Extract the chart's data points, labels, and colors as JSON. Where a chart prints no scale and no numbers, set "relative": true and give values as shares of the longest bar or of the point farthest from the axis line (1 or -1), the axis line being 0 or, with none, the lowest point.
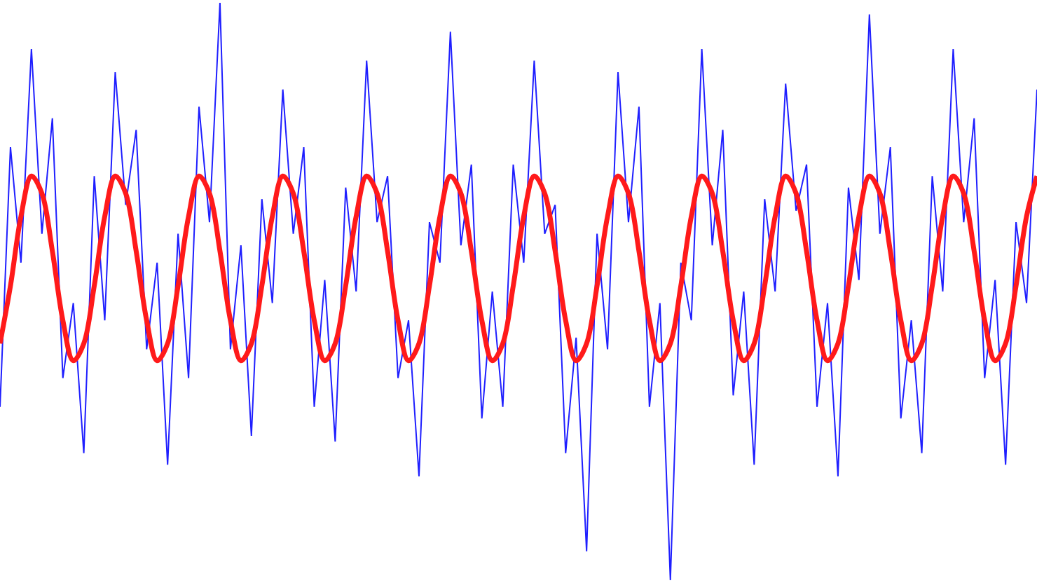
{
  "chart_data": {
    "type": "line",
    "relative": true,
    "line_style": "solid",
    "marker": "none",
    "categories": [
      null,
      null,
      null,
      null,
      null,
      null,
      null,
      null,
      null,
      null,
      null,
      null,
      null,
      null,
      null,
      null,
      null,
      null,
      null,
      null,
      null,
      null,
      null,
      null,
      null,
      null,
      null,
      null,
      null,
      null,
      null,
      null,
      null,
      null,
      null,
      null,
      null,
      null,
      null,
      null,
      null,
      null,
      null,
      null,
      null,
      null,
      null,
      null,
      null,
      null,
      null,
      null,
      null,
      null,
      null,
      null,
      null,
      null,
      null,
      null,
      null,
      null,
      null,
      null,
      null,
      null,
      null,
      null,
      null,
      null,
      null,
      null,
      null,
      null,
      null,
      null,
      null,
      null,
      null,
      null,
      null,
      null,
      null,
      null,
      null,
      null,
      null,
      null,
      null,
      null,
      null,
      null,
      null,
      null,
      null,
      null,
      null,
      null,
      null,
      null
    ],
    "series": [
      {
        "color": "#1f1fff",
        "values": [
          0.3,
          0.75,
          0.55,
          0.92,
          0.6,
          0.8,
          0.35,
          0.48,
          0.22,
          0.7,
          0.45,
          0.88,
          0.65,
          0.78,
          0.4,
          0.55,
          0.2,
          0.6,
          0.35,
          0.82,
          0.62,
          1.0,
          0.4,
          0.58,
          0.25,
          0.66,
          0.48,
          0.85,
          0.6,
          0.75,
          0.3,
          0.52,
          0.24,
          0.68,
          0.5,
          0.9,
          0.62,
          0.7,
          0.35,
          0.45,
          0.18,
          0.62,
          0.55,
          0.95,
          0.58,
          0.72,
          0.28,
          0.5,
          0.3,
          0.72,
          0.55,
          0.9,
          0.6,
          0.65,
          0.22,
          0.42,
          0.05,
          0.6,
          0.4,
          0.88,
          0.62,
          0.82,
          0.3,
          0.48,
          0.0,
          0.55,
          0.45,
          0.92,
          0.58,
          0.78,
          0.32,
          0.5,
          0.2,
          0.66,
          0.5,
          0.86,
          0.64,
          0.72,
          0.3,
          0.48,
          0.18,
          0.68,
          0.52,
          0.98,
          0.6,
          0.75,
          0.28,
          0.45,
          0.22,
          0.7,
          0.5,
          0.92,
          0.62,
          0.8,
          0.35,
          0.52,
          0.2,
          0.62,
          0.48,
          0.85
        ]
      },
      {
        "color": "#ff1a1a",
        "values": [
          0.41,
          0.51,
          0.63,
          0.7,
          0.67,
          0.57,
          0.45,
          0.38,
          0.41,
          0.51,
          0.63,
          0.7,
          0.67,
          0.57,
          0.45,
          0.38,
          0.41,
          0.51,
          0.63,
          0.7,
          0.67,
          0.57,
          0.45,
          0.38,
          0.41,
          0.51,
          0.63,
          0.7,
          0.67,
          0.57,
          0.45,
          0.38,
          0.41,
          0.51,
          0.63,
          0.7,
          0.67,
          0.57,
          0.45,
          0.38,
          0.41,
          0.51,
          0.63,
          0.7,
          0.67,
          0.57,
          0.45,
          0.38,
          0.41,
          0.51,
          0.63,
          0.7,
          0.67,
          0.57,
          0.45,
          0.38,
          0.41,
          0.51,
          0.63,
          0.7,
          0.67,
          0.57,
          0.45,
          0.38,
          0.41,
          0.51,
          0.63,
          0.7,
          0.67,
          0.57,
          0.45,
          0.38,
          0.41,
          0.51,
          0.63,
          0.7,
          0.67,
          0.57,
          0.45,
          0.38,
          0.41,
          0.51,
          0.63,
          0.7,
          0.67,
          0.57,
          0.45,
          0.38,
          0.41,
          0.51,
          0.63,
          0.7,
          0.67,
          0.57,
          0.45,
          0.38,
          0.41,
          0.51,
          0.63,
          0.7
        ]
      }
    ]
  }
}
